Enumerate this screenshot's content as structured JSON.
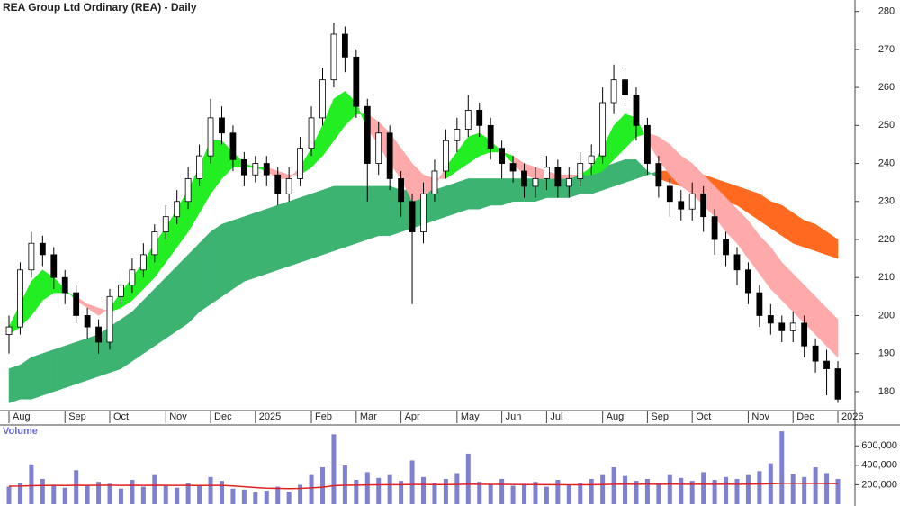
{
  "chart_data": [
    {
      "type": "candlestick",
      "title": "REA Group Ltd Ordinary (REA) - Daily",
      "categories": [
        "Aug",
        null,
        null,
        null,
        null,
        "Sep",
        null,
        null,
        null,
        "Oct",
        null,
        null,
        null,
        null,
        "Nov",
        null,
        null,
        null,
        "Dec",
        null,
        null,
        null,
        "2025",
        null,
        null,
        null,
        null,
        "Feb",
        null,
        null,
        null,
        "Mar",
        null,
        null,
        null,
        "Apr",
        null,
        null,
        null,
        null,
        "May",
        null,
        null,
        null,
        "Jun",
        null,
        null,
        null,
        "Jul",
        null,
        null,
        null,
        null,
        "Aug",
        null,
        null,
        null,
        "Sep",
        null,
        null,
        null,
        "Oct",
        null,
        null,
        null,
        null,
        "Nov",
        null,
        null,
        null,
        "Dec",
        null,
        null,
        null,
        "2026"
      ],
      "open": [
        195,
        197,
        212,
        219,
        216,
        210,
        206,
        200,
        197,
        193,
        205,
        208,
        212,
        216,
        222,
        226,
        230,
        236,
        242,
        252,
        248,
        241,
        237,
        240,
        237,
        232,
        236,
        244,
        252,
        262,
        274,
        268,
        255,
        240,
        248,
        236,
        230,
        222,
        232,
        238,
        246,
        249,
        254,
        250,
        244,
        240,
        238,
        234,
        236,
        239,
        234,
        236,
        240,
        242,
        256,
        262,
        258,
        250,
        240,
        234,
        230,
        228,
        232,
        226,
        220,
        216,
        212,
        206,
        200,
        198,
        196,
        198,
        192,
        188,
        186
      ],
      "high": [
        200,
        214,
        222,
        221,
        218,
        212,
        208,
        202,
        199,
        207,
        211,
        215,
        219,
        224,
        229,
        233,
        239,
        245,
        257,
        255,
        250,
        243,
        242,
        242,
        239,
        239,
        247,
        255,
        265,
        277,
        276,
        270,
        257,
        251,
        250,
        238,
        232,
        235,
        241,
        249,
        252,
        258,
        256,
        252,
        246,
        242,
        240,
        239,
        242,
        241,
        239,
        243,
        245,
        260,
        266,
        265,
        260,
        252,
        242,
        236,
        233,
        235,
        234,
        228,
        222,
        218,
        214,
        208,
        203,
        200,
        201,
        200,
        194,
        191,
        188
      ],
      "low": [
        190,
        195,
        210,
        213,
        207,
        203,
        198,
        194,
        190,
        191,
        203,
        206,
        210,
        214,
        220,
        224,
        228,
        234,
        240,
        245,
        238,
        234,
        235,
        234,
        229,
        230,
        234,
        242,
        250,
        260,
        264,
        252,
        230,
        237,
        233,
        226,
        203,
        219,
        230,
        236,
        243,
        247,
        247,
        241,
        236,
        235,
        231,
        231,
        233,
        231,
        231,
        234,
        237,
        240,
        253,
        255,
        246,
        237,
        231,
        226,
        225,
        225,
        222,
        216,
        213,
        208,
        203,
        197,
        195,
        193,
        193,
        189,
        185,
        179,
        177
      ],
      "close": [
        197,
        212,
        219,
        216,
        210,
        206,
        200,
        197,
        193,
        205,
        208,
        212,
        216,
        222,
        226,
        230,
        236,
        242,
        252,
        248,
        241,
        237,
        240,
        237,
        232,
        236,
        244,
        252,
        262,
        274,
        268,
        255,
        240,
        248,
        236,
        230,
        222,
        232,
        238,
        246,
        249,
        254,
        250,
        244,
        240,
        238,
        234,
        236,
        239,
        234,
        236,
        240,
        242,
        256,
        262,
        258,
        250,
        240,
        234,
        230,
        228,
        232,
        226,
        220,
        216,
        212,
        206,
        200,
        198,
        196,
        198,
        192,
        188,
        186,
        178
      ],
      "up_color": "#ffffff",
      "down_color": "#000000",
      "bands": [
        {
          "fast": [
            186,
            187,
            189,
            190,
            191,
            192,
            193,
            194,
            195,
            197,
            199,
            201,
            204,
            207,
            210,
            213,
            216,
            219,
            222,
            224,
            225,
            226,
            227,
            228,
            229,
            230,
            231,
            232,
            233,
            234,
            234,
            234,
            234,
            234,
            234,
            233,
            233,
            233,
            233,
            234,
            235,
            236,
            236,
            236,
            236,
            236,
            236,
            236,
            236,
            237,
            237,
            237,
            238,
            239,
            240,
            241,
            241,
            238,
            236,
            235,
            234,
            233,
            232,
            231,
            230,
            229,
            227,
            225,
            223,
            221,
            219,
            218,
            217,
            216,
            215
          ],
          "slow": [
            177,
            178,
            178,
            179,
            180,
            181,
            182,
            183,
            184,
            185,
            186,
            188,
            190,
            192,
            194,
            196,
            198,
            201,
            203,
            205,
            207,
            209,
            210,
            211,
            212,
            213,
            214,
            215,
            216,
            217,
            218,
            219,
            220,
            221,
            221,
            222,
            223,
            224,
            225,
            226,
            227,
            228,
            228,
            229,
            229,
            230,
            230,
            230,
            231,
            231,
            231,
            232,
            232,
            233,
            234,
            235,
            236,
            237,
            238,
            238,
            238,
            238,
            237,
            236,
            235,
            234,
            233,
            232,
            230,
            229,
            227,
            225,
            224,
            222,
            220
          ],
          "rising_color": "#3cb371",
          "falling_color": "#ff6a20"
        },
        {
          "fast": [
            197,
            203,
            209,
            212,
            210,
            207,
            204,
            202,
            200,
            202,
            206,
            210,
            214,
            219,
            223,
            228,
            233,
            239,
            246,
            246,
            243,
            240,
            239,
            238,
            236,
            236,
            239,
            244,
            250,
            257,
            259,
            256,
            249,
            245,
            240,
            236,
            230,
            231,
            234,
            239,
            243,
            247,
            248,
            246,
            243,
            240,
            237,
            236,
            236,
            236,
            236,
            237,
            239,
            244,
            250,
            253,
            252,
            246,
            241,
            237,
            234,
            232,
            229,
            226,
            222,
            219,
            215,
            211,
            207,
            204,
            201,
            198,
            195,
            192,
            189
          ],
          "slow": [
            195,
            197,
            200,
            204,
            206,
            206,
            205,
            203,
            202,
            201,
            202,
            204,
            207,
            210,
            214,
            218,
            222,
            227,
            232,
            236,
            239,
            239,
            239,
            239,
            238,
            237,
            237,
            239,
            242,
            246,
            250,
            253,
            253,
            251,
            248,
            244,
            240,
            237,
            236,
            236,
            238,
            240,
            242,
            243,
            243,
            242,
            240,
            239,
            238,
            237,
            237,
            237,
            237,
            238,
            241,
            244,
            247,
            248,
            247,
            245,
            242,
            240,
            237,
            234,
            231,
            228,
            225,
            221,
            218,
            214,
            211,
            208,
            205,
            202,
            199
          ],
          "rising_color": "#22ee22",
          "falling_color": "#ffaaaa"
        }
      ],
      "ylim": [
        175,
        283
      ],
      "yticks": [
        180,
        190,
        200,
        210,
        220,
        230,
        240,
        250,
        260,
        270,
        280
      ]
    },
    {
      "type": "bar",
      "title": "Volume",
      "values": [
        180000,
        220000,
        410000,
        260000,
        200000,
        170000,
        350000,
        190000,
        230000,
        210000,
        160000,
        250000,
        180000,
        300000,
        200000,
        170000,
        220000,
        190000,
        280000,
        240000,
        160000,
        150000,
        120000,
        140000,
        180000,
        130000,
        200000,
        300000,
        380000,
        720000,
        400000,
        250000,
        330000,
        270000,
        300000,
        240000,
        450000,
        280000,
        220000,
        260000,
        320000,
        520000,
        230000,
        200000,
        260000,
        190000,
        210000,
        230000,
        180000,
        250000,
        200000,
        220000,
        260000,
        300000,
        380000,
        290000,
        240000,
        260000,
        220000,
        300000,
        270000,
        240000,
        330000,
        250000,
        280000,
        260000,
        300000,
        340000,
        420000,
        750000,
        310000,
        280000,
        380000,
        320000,
        260000
      ],
      "color": "#8080d0",
      "line_values": [
        185000,
        186000,
        190000,
        192000,
        193000,
        192000,
        195000,
        194000,
        195000,
        195000,
        194000,
        195000,
        193000,
        195000,
        194000,
        193000,
        193000,
        192000,
        193000,
        193000,
        188000,
        180000,
        172000,
        165000,
        162000,
        160000,
        162000,
        168000,
        175000,
        190000,
        195000,
        196000,
        198000,
        199000,
        200000,
        200000,
        203000,
        203000,
        202000,
        202000,
        203000,
        206000,
        205000,
        204000,
        204000,
        203000,
        202000,
        202000,
        200000,
        200000,
        199000,
        199000,
        200000,
        202000,
        205000,
        206000,
        205000,
        206000,
        205000,
        206000,
        206000,
        205000,
        206000,
        205000,
        206000,
        205000,
        206000,
        207000,
        210000,
        216000,
        215000,
        214000,
        214000,
        213000,
        212000
      ],
      "line_color": "#dd2222",
      "ylim": [
        0,
        760000
      ],
      "yticks": [
        {
          "value": 200000,
          "label": "200,000"
        },
        {
          "value": 400000,
          "label": "400,000"
        },
        {
          "value": 600000,
          "label": "600,000"
        }
      ]
    }
  ]
}
